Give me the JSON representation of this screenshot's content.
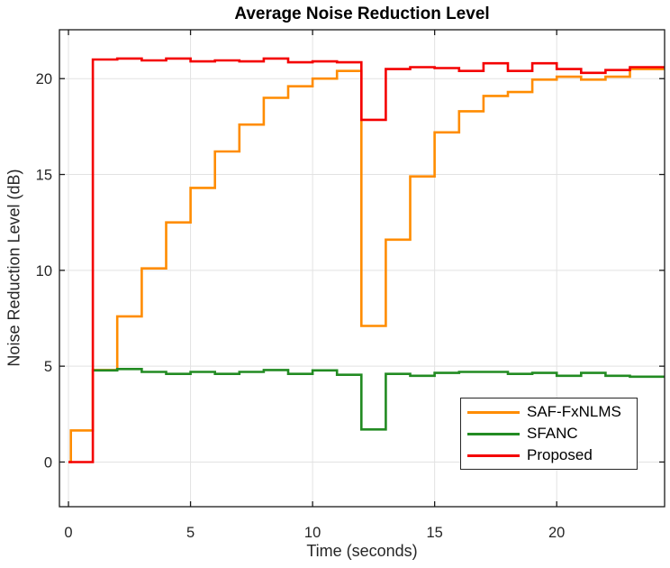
{
  "chart_data": {
    "type": "line",
    "subtype": "stairs",
    "title": "Average Noise Reduction Level",
    "xlabel": "Time (seconds)",
    "ylabel": "Noise Reduction Level (dB)",
    "x_ticks": [
      0,
      5,
      10,
      15,
      20
    ],
    "y_ticks": [
      0,
      5,
      10,
      15,
      20
    ],
    "xlim": [
      -0.37,
      24.42
    ],
    "ylim": [
      -2.33,
      22.55
    ],
    "grid": true,
    "legend_position": "inside-lower-right",
    "series": [
      {
        "name": "SAF-FxNLMS",
        "color": "#FF8C00",
        "step_times": [
          0,
          0.1,
          1,
          2,
          3,
          4,
          5,
          6,
          7,
          8,
          9,
          10,
          11,
          12,
          13,
          14,
          15,
          16,
          17,
          18,
          19,
          20,
          21,
          22,
          23
        ],
        "values": [
          0,
          1.65,
          4.8,
          7.6,
          10.1,
          12.5,
          14.3,
          16.2,
          17.6,
          19.0,
          19.6,
          20.0,
          20.4,
          7.1,
          11.6,
          14.9,
          17.2,
          18.3,
          19.1,
          19.3,
          19.95,
          20.1,
          19.95,
          20.1,
          20.5
        ]
      },
      {
        "name": "SFANC",
        "color": "#228B22",
        "step_times": [
          1,
          2,
          3,
          4,
          5,
          6,
          7,
          8,
          9,
          10,
          11,
          12,
          13,
          14,
          15,
          16,
          17,
          18,
          19,
          20,
          21,
          22,
          23
        ],
        "values": [
          4.78,
          4.85,
          4.7,
          4.6,
          4.7,
          4.6,
          4.7,
          4.8,
          4.6,
          4.78,
          4.55,
          1.7,
          4.6,
          4.5,
          4.65,
          4.7,
          4.7,
          4.6,
          4.65,
          4.5,
          4.65,
          4.5,
          4.45
        ]
      },
      {
        "name": "Proposed",
        "color": "#F40000",
        "step_times": [
          0,
          1,
          2,
          3,
          4,
          5,
          6,
          7,
          8,
          9,
          10,
          11,
          12,
          13,
          14,
          15,
          16,
          17,
          18,
          19,
          20,
          21,
          22,
          23
        ],
        "values": [
          0,
          21.0,
          21.05,
          20.95,
          21.05,
          20.9,
          20.95,
          20.9,
          21.05,
          20.85,
          20.9,
          20.85,
          17.85,
          20.5,
          20.6,
          20.55,
          20.4,
          20.8,
          20.4,
          20.8,
          20.5,
          20.3,
          20.45,
          20.6
        ]
      }
    ]
  },
  "legend": {
    "items": [
      {
        "label": "SAF-FxNLMS",
        "color": "#FF8C00"
      },
      {
        "label": "SFANC",
        "color": "#228B22"
      },
      {
        "label": "Proposed",
        "color": "#F40000"
      }
    ]
  },
  "axis_style": {
    "axis_color": "#1a1a1a",
    "tick_label_color": "#262626",
    "grid_color": "#E2E2E2"
  }
}
